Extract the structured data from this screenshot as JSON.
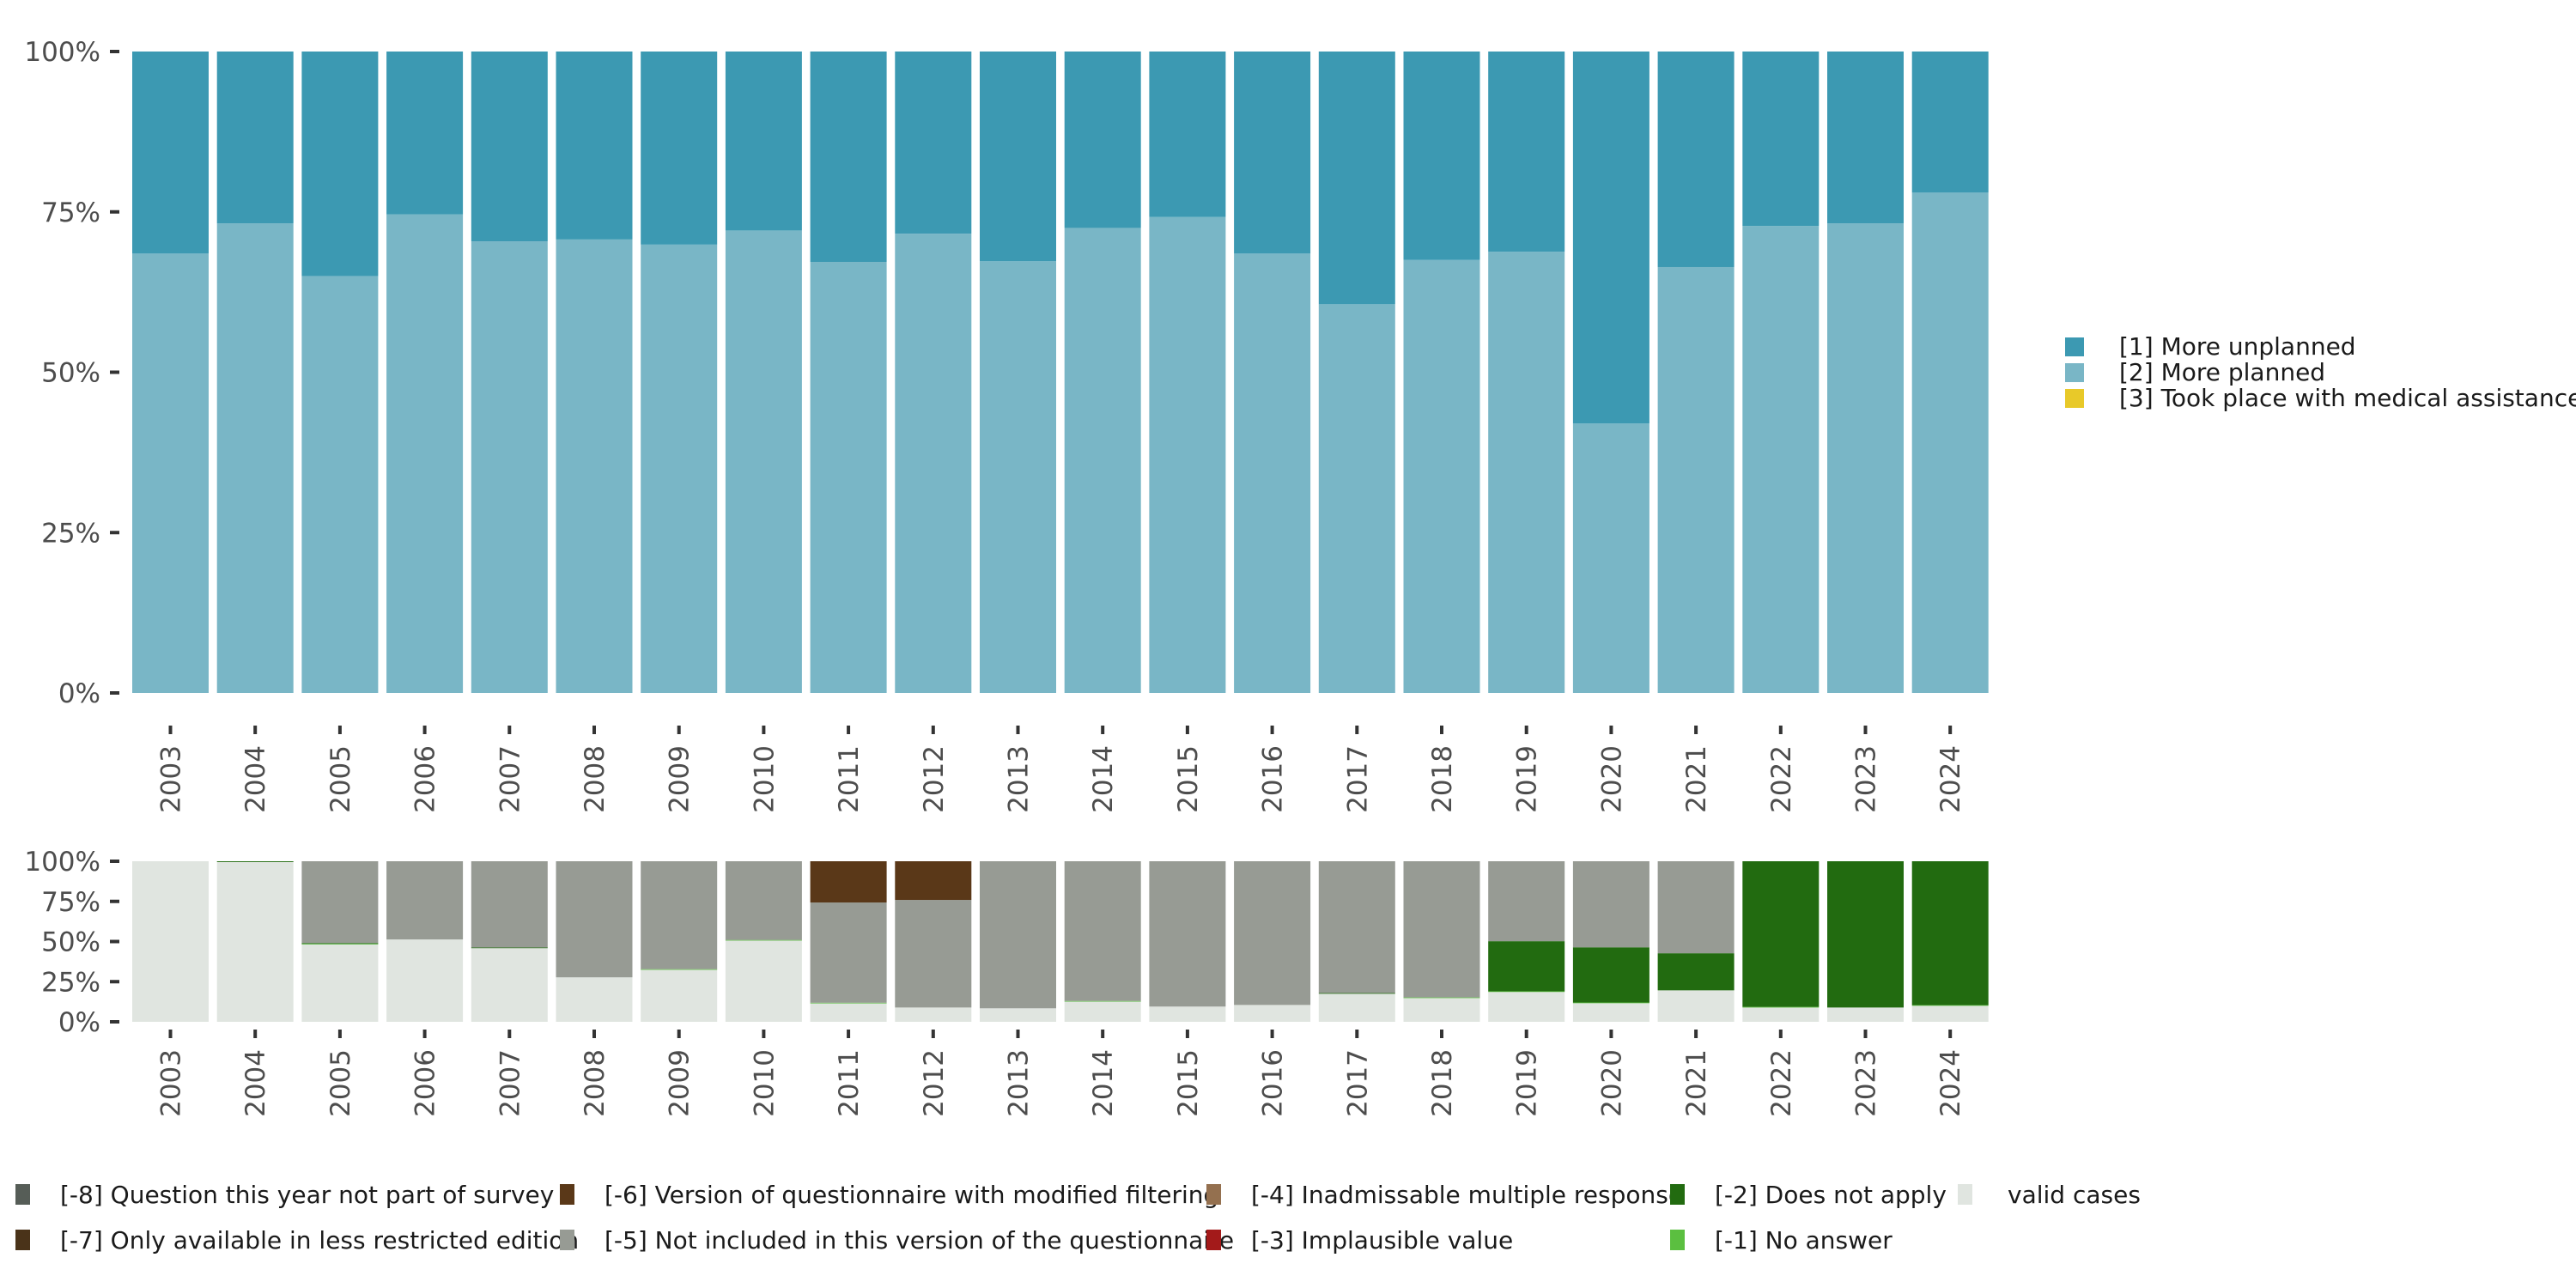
{
  "chart_data": [
    {
      "id": "main",
      "type": "bar",
      "stacked": true,
      "normalized": true,
      "title": "",
      "xlabel": "",
      "ylabel": "",
      "ylim": [
        0,
        100
      ],
      "yticks": [
        "0%",
        "25%",
        "50%",
        "75%",
        "100%"
      ],
      "categories": [
        "2003",
        "2004",
        "2005",
        "2006",
        "2007",
        "2008",
        "2009",
        "2010",
        "2011",
        "2012",
        "2013",
        "2014",
        "2015",
        "2016",
        "2017",
        "2018",
        "2019",
        "2020",
        "2021",
        "2022",
        "2023",
        "2024"
      ],
      "series": [
        {
          "name": "[2] More planned",
          "color": "#79b6c6",
          "values": [
            68.5,
            73.2,
            65.0,
            74.6,
            70.4,
            70.7,
            69.9,
            72.1,
            67.2,
            71.6,
            67.3,
            72.5,
            74.2,
            68.5,
            60.6,
            67.5,
            68.8,
            42.0,
            66.4,
            72.8,
            73.2,
            78.0
          ]
        },
        {
          "name": "[1] More unplanned",
          "color": "#3c99b2",
          "values": [
            31.5,
            26.8,
            35.0,
            25.4,
            29.6,
            29.3,
            30.1,
            27.9,
            32.8,
            28.4,
            32.7,
            27.5,
            25.8,
            31.5,
            39.4,
            32.5,
            31.2,
            58.0,
            33.6,
            27.2,
            26.8,
            22.0
          ]
        },
        {
          "name": "[3] Took place with medical assistance",
          "color": "#e8c929",
          "values": [
            0,
            0,
            0,
            0,
            0,
            0,
            0,
            0,
            0,
            0,
            0,
            0,
            0,
            0,
            0,
            0,
            0,
            0,
            0,
            0,
            0,
            0
          ]
        }
      ],
      "legend": {
        "placement": "right",
        "items": [
          {
            "label": "[1] More unplanned",
            "color": "#3c99b2"
          },
          {
            "label": "[2] More planned",
            "color": "#79b6c6"
          },
          {
            "label": "[3] Took place with medical assistance",
            "color": "#e8c929"
          }
        ]
      }
    },
    {
      "id": "missing",
      "type": "bar",
      "stacked": true,
      "normalized": true,
      "title": "",
      "xlabel": "",
      "ylabel": "",
      "ylim": [
        0,
        100
      ],
      "yticks": [
        "0%",
        "25%",
        "50%",
        "75%",
        "100%"
      ],
      "categories": [
        "2003",
        "2004",
        "2005",
        "2006",
        "2007",
        "2008",
        "2009",
        "2010",
        "2011",
        "2012",
        "2013",
        "2014",
        "2015",
        "2016",
        "2017",
        "2018",
        "2019",
        "2020",
        "2021",
        "2022",
        "2023",
        "2024"
      ],
      "series": [
        {
          "name": "valid cases",
          "color": "#e0e5e0",
          "values": [
            100,
            99.5,
            48.2,
            51.3,
            45.9,
            27.7,
            32.5,
            50.7,
            11.6,
            8.9,
            8.4,
            12.7,
            9.5,
            10.5,
            17.5,
            14.8,
            18.6,
            11.6,
            19.6,
            8.9,
            8.9,
            10.0
          ]
        },
        {
          "name": "[-1] No answer",
          "color": "#5bbf40",
          "values": [
            0,
            0,
            0.4,
            0,
            0,
            0,
            0.3,
            0.3,
            0.3,
            0,
            0,
            0.3,
            0,
            0,
            0,
            0.4,
            0.4,
            0.4,
            0,
            0.4,
            0,
            0.4
          ]
        },
        {
          "name": "[-2] Does not apply",
          "color": "#226b10",
          "values": [
            0,
            0.5,
            0.4,
            0,
            0.4,
            0,
            0,
            0,
            0,
            0,
            0,
            0,
            0,
            0,
            0.4,
            0,
            31.2,
            34.4,
            23.1,
            90.7,
            91.1,
            89.6
          ]
        },
        {
          "name": "[-3] Implausible value",
          "color": "#a31a1a",
          "values": [
            0,
            0,
            0,
            0,
            0,
            0,
            0,
            0,
            0,
            0,
            0,
            0,
            0,
            0,
            0,
            0,
            0,
            0,
            0,
            0,
            0,
            0
          ]
        },
        {
          "name": "[-4] Inadmissable multiple response",
          "color": "#94704f",
          "values": [
            0,
            0,
            0,
            0,
            0,
            0,
            0,
            0,
            0,
            0,
            0,
            0,
            0,
            0,
            0,
            0,
            0,
            0,
            0,
            0,
            0,
            0
          ]
        },
        {
          "name": "[-5] Not included in this version of the questionnaire",
          "color": "#979b94",
          "values": [
            0,
            0,
            51.0,
            48.7,
            53.7,
            72.3,
            67.2,
            49.0,
            62.4,
            67.0,
            91.6,
            87.0,
            90.5,
            89.5,
            82.1,
            84.8,
            49.8,
            53.6,
            57.3,
            0,
            0,
            0
          ]
        },
        {
          "name": "[-6] Version of questionnaire with modified filtering",
          "color": "#5a3818",
          "values": [
            0,
            0,
            0,
            0,
            0,
            0,
            0,
            0,
            25.7,
            24.1,
            0,
            0,
            0,
            0,
            0,
            0,
            0,
            0,
            0,
            0,
            0,
            0
          ]
        },
        {
          "name": "[-7] Only available in less restricted edition",
          "color": "#4a3319",
          "values": [
            0,
            0,
            0,
            0,
            0,
            0,
            0,
            0,
            0,
            0,
            0,
            0,
            0,
            0,
            0,
            0,
            0,
            0,
            0,
            0,
            0,
            0
          ]
        },
        {
          "name": "[-8] Question this year not part of survey",
          "color": "#565d57",
          "values": [
            0,
            0,
            0,
            0,
            0,
            0,
            0,
            0,
            0,
            0,
            0,
            0,
            0,
            0,
            0,
            0,
            0,
            0,
            0,
            0,
            0,
            0
          ]
        }
      ],
      "legend": {
        "placement": "bottom",
        "items": [
          {
            "label": "[-8] Question this year not part of survey",
            "color": "#565d57"
          },
          {
            "label": "[-7] Only available in less restricted edition",
            "color": "#4a3319"
          },
          {
            "label": "[-6] Version of questionnaire with modified filtering",
            "color": "#5a3818"
          },
          {
            "label": "[-5] Not included in this version of the questionnaire",
            "color": "#979b94"
          },
          {
            "label": "[-4] Inadmissable multiple response",
            "color": "#94704f"
          },
          {
            "label": "[-3] Implausible value",
            "color": "#a31a1a"
          },
          {
            "label": "[-2] Does not apply",
            "color": "#226b10"
          },
          {
            "label": "[-1] No answer",
            "color": "#5bbf40"
          },
          {
            "label": "valid cases",
            "color": "#e0e5e0"
          }
        ]
      }
    }
  ]
}
